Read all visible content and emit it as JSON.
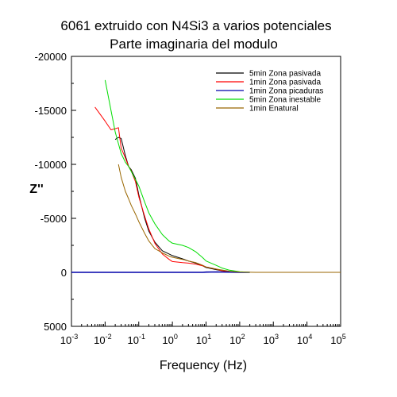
{
  "chart_data": {
    "type": "line",
    "title": "6061 extruido con N4Si3 a varios potenciales",
    "subtitle": "Parte imaginaria del modulo",
    "xlabel": "Frequency (Hz)",
    "ylabel": "Z''",
    "x_scale": "log",
    "xlim": [
      0.001,
      100000
    ],
    "x_ticks": [
      {
        "base": "10",
        "exp": "-3"
      },
      {
        "base": "10",
        "exp": "-2"
      },
      {
        "base": "10",
        "exp": "-1"
      },
      {
        "base": "10",
        "exp": "0"
      },
      {
        "base": "10",
        "exp": "1"
      },
      {
        "base": "10",
        "exp": "2"
      },
      {
        "base": "10",
        "exp": "3"
      },
      {
        "base": "10",
        "exp": "4"
      },
      {
        "base": "10",
        "exp": "5"
      }
    ],
    "ylim": [
      5000,
      -20000
    ],
    "y_ticks": [
      {
        "value": -20000,
        "label": "-20000"
      },
      {
        "value": -15000,
        "label": "-15000"
      },
      {
        "value": -10000,
        "label": "-10000"
      },
      {
        "value": -5000,
        "label": "-5000"
      },
      {
        "value": 0,
        "label": "0"
      },
      {
        "value": 5000,
        "label": "5000"
      }
    ],
    "grid": false,
    "legend_position": "top-right",
    "series": [
      {
        "name": "5min Zona pasivada",
        "color": "#000000",
        "x": [
          0.02,
          0.025,
          0.03,
          0.04,
          0.05,
          0.06,
          0.08,
          0.1,
          0.15,
          0.2,
          0.3,
          0.5,
          0.8,
          1,
          2,
          3,
          5,
          8,
          10,
          20,
          30,
          50,
          100
        ],
        "y": [
          -12300,
          -12500,
          -12400,
          -10800,
          -9800,
          -9500,
          -8700,
          -7200,
          -5000,
          -3800,
          -2800,
          -2000,
          -1700,
          -1550,
          -1250,
          -1050,
          -850,
          -600,
          -450,
          -250,
          -150,
          -60,
          -10
        ]
      },
      {
        "name": "1min Zona pasivada",
        "color": "#ff0000",
        "x": [
          0.005,
          0.01,
          0.015,
          0.02,
          0.025,
          0.03,
          0.04,
          0.05,
          0.06,
          0.08,
          0.1,
          0.15,
          0.2,
          0.3,
          0.5,
          0.8,
          1,
          2,
          3,
          5,
          8,
          10,
          20,
          30,
          50,
          100
        ],
        "y": [
          -15300,
          -14000,
          -13200,
          -13300,
          -13400,
          -11500,
          -10600,
          -9800,
          -9400,
          -8400,
          -7000,
          -5200,
          -4000,
          -2700,
          -1700,
          -1200,
          -1000,
          -900,
          -850,
          -750,
          -600,
          -500,
          -300,
          -150,
          -50,
          -5
        ]
      },
      {
        "name": "1min Zona picaduras",
        "color": "#0000aa",
        "x": [
          0.001,
          0.01,
          0.1,
          1,
          8,
          10,
          20,
          50,
          100,
          200
        ],
        "y": [
          0,
          0,
          0,
          0,
          0,
          -20,
          -40,
          -20,
          -10,
          0
        ]
      },
      {
        "name": "5min Zona inestable",
        "color": "#00dd00",
        "x": [
          0.01,
          0.015,
          0.02,
          0.03,
          0.04,
          0.05,
          0.08,
          0.1,
          0.15,
          0.2,
          0.3,
          0.5,
          0.8,
          1,
          2,
          3,
          5,
          8,
          10,
          20,
          30,
          50,
          100,
          200
        ],
        "y": [
          -17800,
          -15000,
          -13000,
          -11000,
          -10200,
          -9800,
          -8600,
          -8000,
          -6500,
          -5500,
          -4500,
          -3500,
          -2900,
          -2700,
          -2500,
          -2300,
          -1900,
          -1350,
          -1050,
          -650,
          -400,
          -200,
          -60,
          -10
        ]
      },
      {
        "name": "1min Enatural",
        "color": "#996600",
        "x": [
          0.025,
          0.03,
          0.04,
          0.05,
          0.06,
          0.08,
          0.1,
          0.15,
          0.2,
          0.3,
          0.5,
          0.8,
          1,
          2,
          3,
          5,
          8,
          10,
          20,
          50,
          100,
          300,
          1000,
          10000,
          100000
        ],
        "y": [
          -10000,
          -8800,
          -7500,
          -6800,
          -6200,
          -5400,
          -4700,
          -3600,
          -2900,
          -2200,
          -1800,
          -1500,
          -1400,
          -1200,
          -1050,
          -900,
          -650,
          -500,
          -300,
          -100,
          -30,
          0,
          0,
          0,
          0
        ]
      }
    ]
  }
}
